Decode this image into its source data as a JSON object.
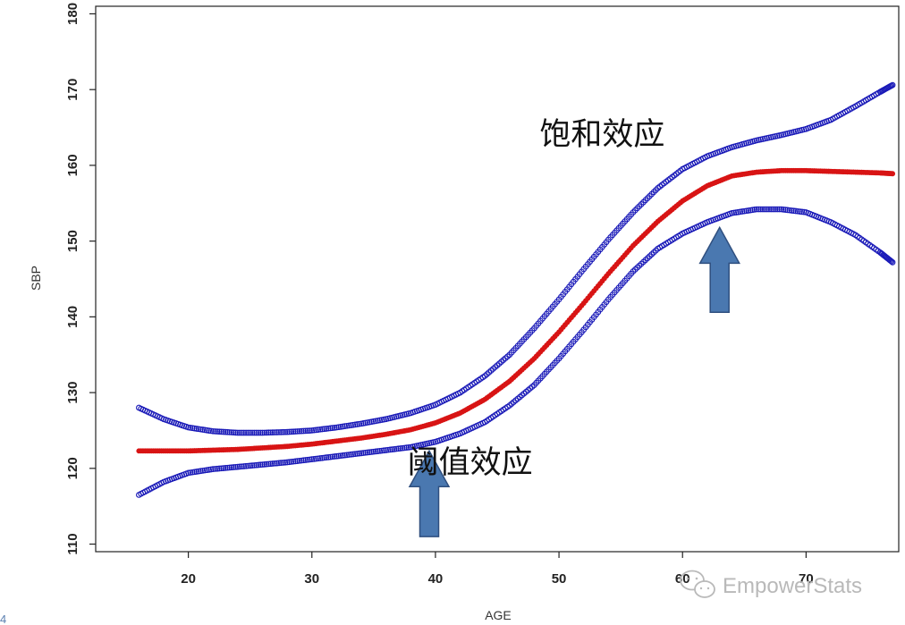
{
  "chart_data": {
    "type": "scatter",
    "title": "",
    "xlabel": "AGE",
    "ylabel": "SBP",
    "xlim": [
      12.5,
      77.5
    ],
    "ylim": [
      109,
      181
    ],
    "xticks": [
      20,
      30,
      40,
      50,
      60,
      70
    ],
    "yticks": [
      110,
      120,
      130,
      140,
      150,
      160,
      170,
      180
    ],
    "grid": false,
    "legend": "none",
    "series": [
      {
        "role": "upper-ci",
        "color": "#1a1ab8",
        "marker": "open-circle",
        "x": [
          16,
          18,
          20,
          22,
          24,
          26,
          28,
          30,
          32,
          34,
          36,
          38,
          40,
          42,
          44,
          46,
          48,
          50,
          52,
          54,
          56,
          58,
          60,
          62,
          64,
          66,
          68,
          70,
          72,
          74,
          76,
          77
        ],
        "values": [
          128.0,
          126.5,
          125.4,
          124.9,
          124.7,
          124.7,
          124.8,
          125.0,
          125.4,
          125.9,
          126.5,
          127.3,
          128.4,
          130.0,
          132.2,
          135.0,
          138.5,
          142.3,
          146.3,
          150.2,
          153.8,
          157.0,
          159.5,
          161.2,
          162.4,
          163.3,
          164.0,
          164.8,
          166.0,
          167.8,
          169.7,
          170.6
        ]
      },
      {
        "role": "fitted",
        "color": "#d81414",
        "marker": "filled-circle",
        "x": [
          16,
          18,
          20,
          22,
          24,
          26,
          28,
          30,
          32,
          34,
          36,
          38,
          40,
          42,
          44,
          46,
          48,
          50,
          52,
          54,
          56,
          58,
          60,
          62,
          64,
          66,
          68,
          70,
          72,
          74,
          76,
          77
        ],
        "values": [
          122.3,
          122.3,
          122.3,
          122.4,
          122.5,
          122.7,
          122.9,
          123.2,
          123.6,
          124.0,
          124.5,
          125.1,
          126.0,
          127.3,
          129.1,
          131.5,
          134.5,
          138.0,
          141.8,
          145.7,
          149.4,
          152.6,
          155.3,
          157.3,
          158.6,
          159.1,
          159.3,
          159.3,
          159.2,
          159.1,
          159.0,
          158.9
        ]
      },
      {
        "role": "lower-ci",
        "color": "#1a1ab8",
        "marker": "open-circle",
        "x": [
          16,
          18,
          20,
          22,
          24,
          26,
          28,
          30,
          32,
          34,
          36,
          38,
          40,
          42,
          44,
          46,
          48,
          50,
          52,
          54,
          56,
          58,
          60,
          62,
          64,
          66,
          68,
          70,
          72,
          74,
          76,
          77
        ],
        "values": [
          116.5,
          118.2,
          119.4,
          119.9,
          120.2,
          120.5,
          120.8,
          121.2,
          121.6,
          122.0,
          122.4,
          122.8,
          123.5,
          124.6,
          126.1,
          128.3,
          131.0,
          134.5,
          138.3,
          142.3,
          146.0,
          149.0,
          151.0,
          152.5,
          153.7,
          154.2,
          154.2,
          153.8,
          152.5,
          150.8,
          148.5,
          147.2
        ]
      }
    ],
    "annotations": [
      {
        "text": "饱和效应",
        "x": 53.5,
        "y": 162.7
      },
      {
        "text": "阈值效应",
        "x": 42.8,
        "y": 119.4
      }
    ],
    "arrows": [
      {
        "x": 39.5,
        "y_from": 111,
        "y_to": 122.3,
        "color": "#4a78b0"
      },
      {
        "x": 63.0,
        "y_from": 140.6,
        "y_to": 151.8,
        "color": "#4a78b0"
      }
    ]
  },
  "watermark": {
    "text": "EmpowerStats",
    "icon": "wechat-icon"
  },
  "edge_mark": "4"
}
